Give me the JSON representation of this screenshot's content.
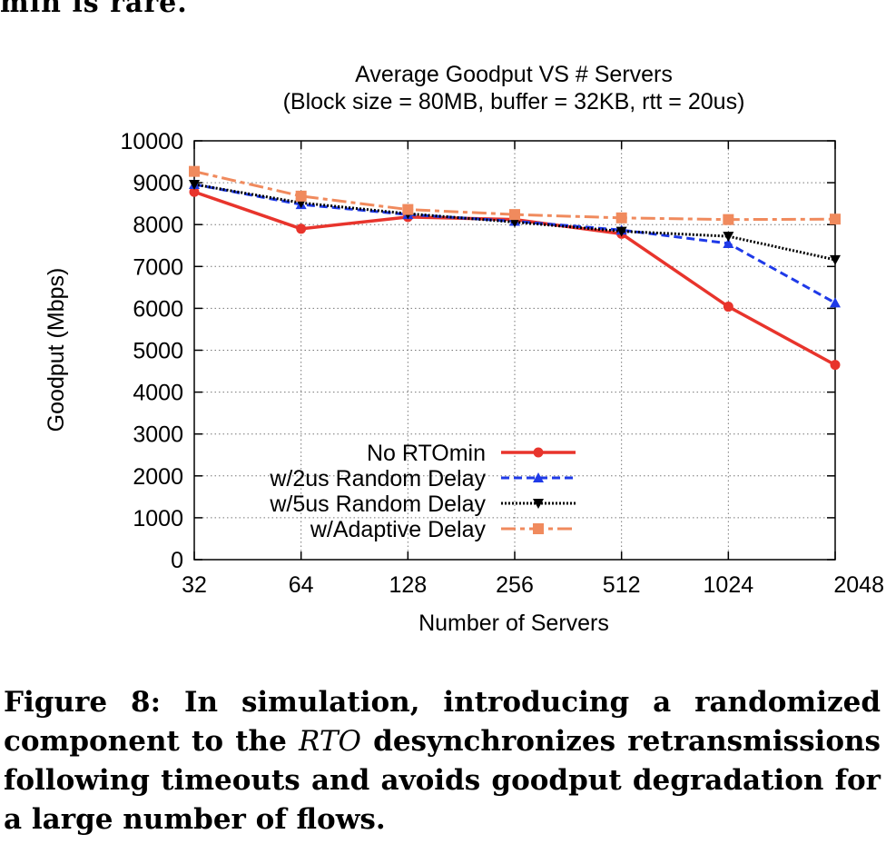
{
  "fragment_text": "min is rare.",
  "caption": {
    "label": "Figure 8:",
    "before": "In simulation, introducing a randomized component to the",
    "rto": "RTO",
    "after": "desynchronizes retransmissions following timeouts and avoids goodput degradation for a large number of flows."
  },
  "chart_data": {
    "type": "line",
    "title": "Average Goodput VS # Servers",
    "subtitle": "(Block size = 80MB, buffer = 32KB, rtt = 20us)",
    "xlabel": "Number of Servers",
    "ylabel": "Goodput (Mbps)",
    "x": [
      "32",
      "64",
      "128",
      "256",
      "512",
      "1024",
      "2048"
    ],
    "x_scale": "log2",
    "ylim": [
      0,
      10000
    ],
    "yticks": [
      "0",
      "1000",
      "2000",
      "3000",
      "4000",
      "5000",
      "6000",
      "7000",
      "8000",
      "9000",
      "10000"
    ],
    "grid": true,
    "legend_position": "bottom-center",
    "series": [
      {
        "name": "No RTOmin",
        "color": "#e8342c",
        "style": "solid",
        "marker": "circle",
        "values": [
          8780,
          7900,
          8180,
          8120,
          7780,
          6040,
          4650
        ]
      },
      {
        "name": "w/2us Random Delay",
        "color": "#1f3ae8",
        "style": "dashed",
        "marker": "triangle-up",
        "values": [
          8960,
          8480,
          8240,
          8080,
          7870,
          7550,
          6130
        ]
      },
      {
        "name": "w/5us Random Delay",
        "color": "#000000",
        "style": "dotted",
        "marker": "triangle-down",
        "values": [
          8960,
          8520,
          8260,
          8060,
          7840,
          7720,
          7160
        ]
      },
      {
        "name": "w/Adaptive Delay",
        "color": "#f08a5d",
        "style": "dashdot",
        "marker": "square",
        "values": [
          9270,
          8680,
          8360,
          8240,
          8160,
          8120,
          8130
        ]
      }
    ]
  }
}
